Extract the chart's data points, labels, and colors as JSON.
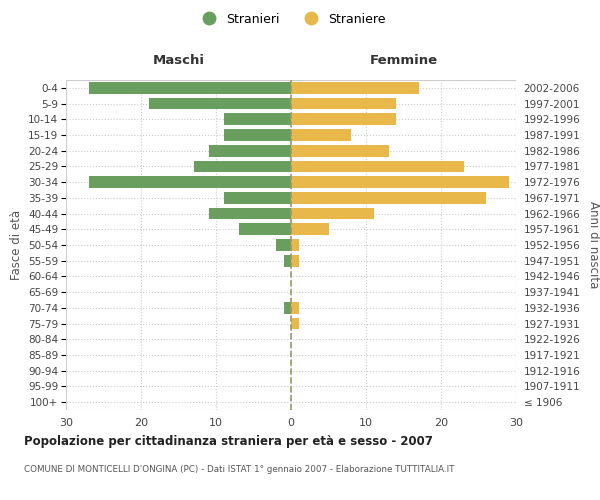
{
  "age_groups": [
    "100+",
    "95-99",
    "90-94",
    "85-89",
    "80-84",
    "75-79",
    "70-74",
    "65-69",
    "60-64",
    "55-59",
    "50-54",
    "45-49",
    "40-44",
    "35-39",
    "30-34",
    "25-29",
    "20-24",
    "15-19",
    "10-14",
    "5-9",
    "0-4"
  ],
  "birth_years": [
    "≤ 1906",
    "1907-1911",
    "1912-1916",
    "1917-1921",
    "1922-1926",
    "1927-1931",
    "1932-1936",
    "1937-1941",
    "1942-1946",
    "1947-1951",
    "1952-1956",
    "1957-1961",
    "1962-1966",
    "1967-1971",
    "1972-1976",
    "1977-1981",
    "1982-1986",
    "1987-1991",
    "1992-1996",
    "1997-2001",
    "2002-2006"
  ],
  "males": [
    0,
    0,
    0,
    0,
    0,
    0,
    1,
    0,
    0,
    1,
    2,
    7,
    11,
    9,
    27,
    13,
    11,
    9,
    9,
    19,
    27
  ],
  "females": [
    0,
    0,
    0,
    0,
    0,
    1,
    1,
    0,
    0,
    1,
    1,
    5,
    11,
    26,
    29,
    23,
    13,
    8,
    14,
    14,
    17
  ],
  "male_color": "#6a9e5e",
  "female_color": "#e8b84b",
  "grid_color": "#cccccc",
  "dashed_line_color": "#999966",
  "title": "Popolazione per cittadinanza straniera per età e sesso - 2007",
  "subtitle": "COMUNE DI MONTICELLI D'ONGINA (PC) - Dati ISTAT 1° gennaio 2007 - Elaborazione TUTTITALIA.IT",
  "xlabel_left": "Maschi",
  "xlabel_right": "Femmine",
  "ylabel_left": "Fasce di età",
  "ylabel_right": "Anni di nascita",
  "legend_male": "Stranieri",
  "legend_female": "Straniere",
  "xlim": 30,
  "bg_color": "#ffffff"
}
